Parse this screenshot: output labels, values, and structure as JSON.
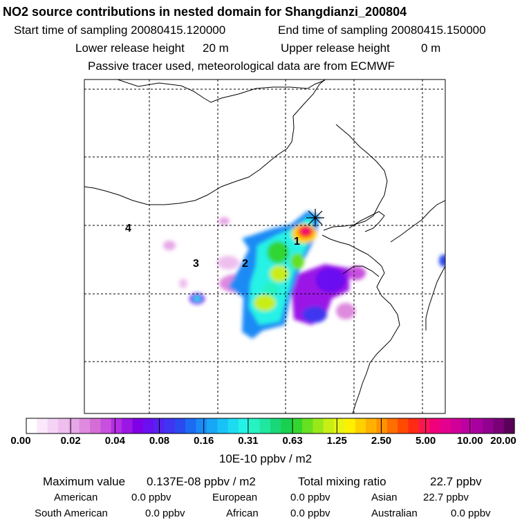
{
  "header": {
    "title": "NO2 source contributions in nested domain for Shangdianzi_200804",
    "start_label": "Start time of sampling 20080415.120000",
    "end_label": "End time of sampling 20080415.150000",
    "lower_label": "Lower release height",
    "lower_value": "20 m",
    "upper_label": "Upper release height",
    "upper_value": "0 m",
    "note": "Passive tracer used, meteorological data are from ECMWF"
  },
  "chart_data": {
    "type": "heatmap",
    "title": "NO2 source contributions in nested domain for Shangdianzi_200804",
    "colorbar": {
      "ticks": [
        "0.00",
        "0.02",
        "0.04",
        "0.08",
        "0.16",
        "0.31",
        "0.63",
        "1.25",
        "2.50",
        "5.00",
        "10.00",
        "20.00"
      ],
      "units": "10E-10 ppbv / m2",
      "colors": [
        "#ffffff",
        "#fbe8fb",
        "#f5d3f5",
        "#eebfee",
        "#e6a8e6",
        "#de8ade",
        "#d46ed4",
        "#c850de",
        "#b52de6",
        "#9b17e6",
        "#8000e6",
        "#6a10f0",
        "#5522f2",
        "#4035f0",
        "#2a4af0",
        "#1c6cf2",
        "#1a8af4",
        "#18a6f6",
        "#19c2f6",
        "#1ddcf2",
        "#25f2e6",
        "#26f2c2",
        "#20e6a0",
        "#1ad878",
        "#19d050",
        "#33d630",
        "#66e020",
        "#99e81a",
        "#c8ee16",
        "#e8f414",
        "#fff000",
        "#ffd000",
        "#ffb000",
        "#ff9200",
        "#ff6e00",
        "#ff4a00",
        "#ff2a14",
        "#f81650",
        "#f0007a",
        "#e4008e",
        "#d0009a",
        "#bc00a2",
        "#a8009e",
        "#920090",
        "#7a0078",
        "#5a005a"
      ]
    },
    "labels": [
      "1",
      "2",
      "3",
      "4"
    ]
  },
  "summary": {
    "max_label": "Maximum value",
    "max_value": "0.137E-08 ppbv / m2",
    "total_label": "Total mixing ratio",
    "total_value": "22.7 ppbv",
    "regions": [
      {
        "name": "American",
        "value": "0.0 ppbv"
      },
      {
        "name": "European",
        "value": "0.0 ppbv"
      },
      {
        "name": "Asian",
        "value": "22.7 ppbv"
      },
      {
        "name": "South American",
        "value": "0.0 ppbv"
      },
      {
        "name": "African",
        "value": "0.0 ppbv"
      },
      {
        "name": "Australian",
        "value": "0.0 ppbv"
      }
    ]
  }
}
